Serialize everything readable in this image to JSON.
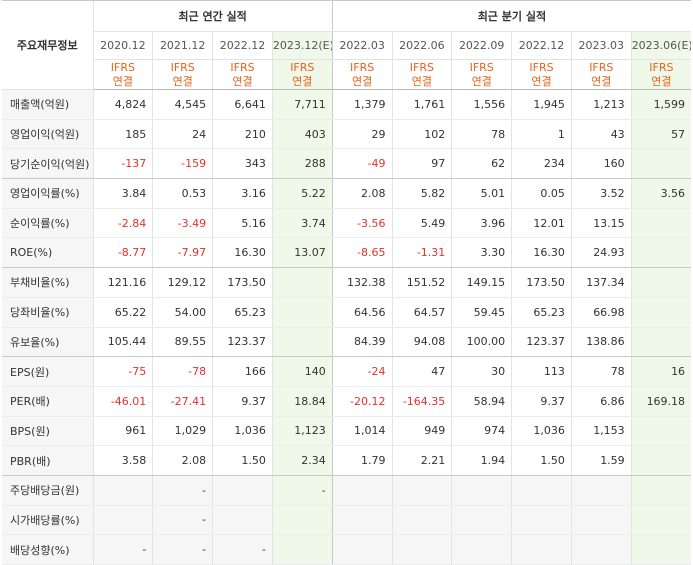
{
  "header": {
    "row_label": "주요재무정보",
    "annual_title": "최근 연간 실적",
    "quarter_title": "최근 분기 실적",
    "annual_periods": [
      "2020.12",
      "2021.12",
      "2022.12",
      "2023.12(E)"
    ],
    "quarter_periods": [
      "2022.03",
      "2022.06",
      "2022.09",
      "2022.12",
      "2023.03",
      "2023.06(E)"
    ],
    "standard_line1": "IFRS",
    "standard_line2": "연결"
  },
  "rows": [
    {
      "label": "매출액(억원)",
      "values": [
        "4,824",
        "4,545",
        "6,641",
        "7,711",
        "1,379",
        "1,761",
        "1,556",
        "1,945",
        "1,213",
        "1,599"
      ]
    },
    {
      "label": "영업이익(억원)",
      "values": [
        "185",
        "24",
        "210",
        "403",
        "29",
        "102",
        "78",
        "1",
        "43",
        "57"
      ]
    },
    {
      "label": "당기순이익(억원)",
      "values": [
        "-137",
        "-159",
        "343",
        "288",
        "-49",
        "97",
        "62",
        "234",
        "160",
        ""
      ]
    },
    {
      "label": "영업이익률(%)",
      "values": [
        "3.84",
        "0.53",
        "3.16",
        "5.22",
        "2.08",
        "5.82",
        "5.01",
        "0.05",
        "3.52",
        "3.56"
      ]
    },
    {
      "label": "순이익률(%)",
      "values": [
        "-2.84",
        "-3.49",
        "5.16",
        "3.74",
        "-3.56",
        "5.49",
        "3.96",
        "12.01",
        "13.15",
        ""
      ]
    },
    {
      "label": "ROE(%)",
      "values": [
        "-8.77",
        "-7.97",
        "16.30",
        "13.07",
        "-8.65",
        "-1.31",
        "3.30",
        "16.30",
        "24.93",
        ""
      ]
    },
    {
      "label": "부채비율(%)",
      "values": [
        "121.16",
        "129.12",
        "173.50",
        "",
        "132.38",
        "151.52",
        "149.15",
        "173.50",
        "137.34",
        ""
      ]
    },
    {
      "label": "당좌비율(%)",
      "values": [
        "65.22",
        "54.00",
        "65.23",
        "",
        "64.56",
        "64.57",
        "59.45",
        "65.23",
        "66.98",
        ""
      ]
    },
    {
      "label": "유보율(%)",
      "values": [
        "105.44",
        "89.55",
        "123.37",
        "",
        "84.39",
        "94.08",
        "100.00",
        "123.37",
        "138.86",
        ""
      ]
    },
    {
      "label": "EPS(원)",
      "values": [
        "-75",
        "-78",
        "166",
        "140",
        "-24",
        "47",
        "30",
        "113",
        "78",
        "16"
      ]
    },
    {
      "label": "PER(배)",
      "values": [
        "-46.01",
        "-27.41",
        "9.37",
        "18.84",
        "-20.12",
        "-164.35",
        "58.94",
        "9.37",
        "6.86",
        "169.18"
      ]
    },
    {
      "label": "BPS(원)",
      "values": [
        "961",
        "1,029",
        "1,036",
        "1,123",
        "1,014",
        "949",
        "974",
        "1,036",
        "1,153",
        ""
      ]
    },
    {
      "label": "PBR(배)",
      "values": [
        "3.58",
        "2.08",
        "1.50",
        "2.34",
        "1.79",
        "2.21",
        "1.94",
        "1.50",
        "1.59",
        ""
      ]
    },
    {
      "label": "주당배당금(원)",
      "values": [
        "",
        "-",
        "",
        "-",
        "",
        "",
        "",
        "",
        "",
        ""
      ]
    },
    {
      "label": "시가배당률(%)",
      "values": [
        "",
        "-",
        "",
        "",
        "",
        "",
        "",
        "",
        "",
        ""
      ]
    },
    {
      "label": "배당성향(%)",
      "values": [
        "-",
        "-",
        "-",
        "",
        "",
        "",
        "",
        "",
        "",
        ""
      ]
    }
  ]
}
